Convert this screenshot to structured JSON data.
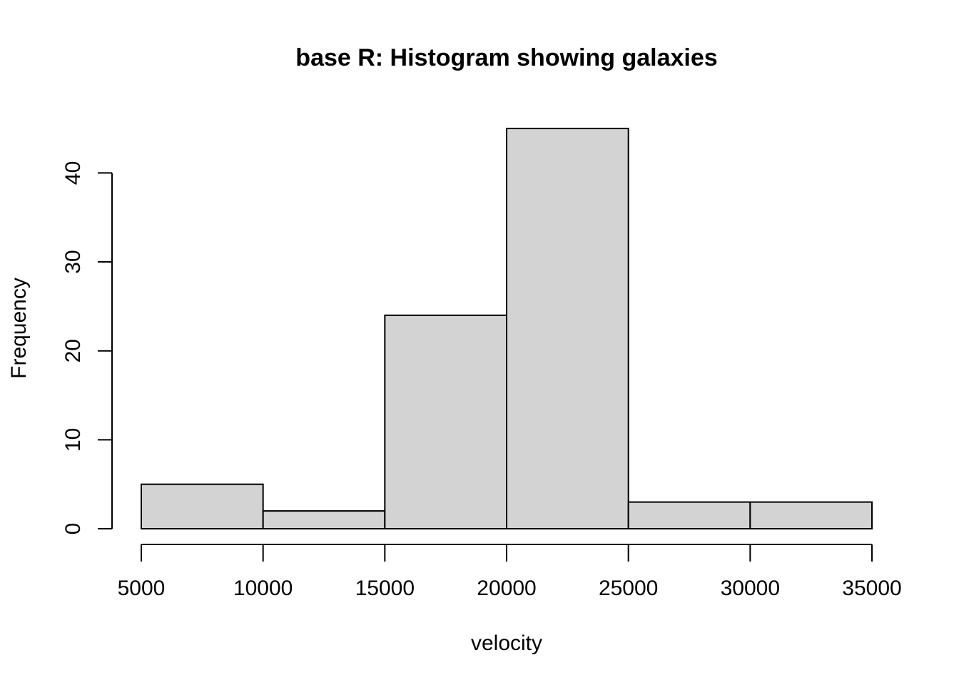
{
  "chart_data": {
    "type": "bar",
    "subtype": "histogram",
    "title": "base R: Histogram showing galaxies",
    "xlabel": "velocity",
    "ylabel": "Frequency",
    "bins": [
      {
        "from": 5000,
        "to": 10000,
        "count": 5
      },
      {
        "from": 10000,
        "to": 15000,
        "count": 2
      },
      {
        "from": 15000,
        "to": 20000,
        "count": 24
      },
      {
        "from": 20000,
        "to": 25000,
        "count": 45
      },
      {
        "from": 25000,
        "to": 30000,
        "count": 3
      },
      {
        "from": 30000,
        "to": 35000,
        "count": 3
      }
    ],
    "x_ticks": [
      "5000",
      "10000",
      "15000",
      "20000",
      "25000",
      "30000",
      "35000"
    ],
    "y_ticks": [
      "0",
      "10",
      "20",
      "30",
      "40"
    ],
    "xlim": [
      5000,
      35000
    ],
    "ylim": [
      0,
      45
    ],
    "grid": false,
    "bar_color": "#d3d3d3",
    "border_color": "#000000"
  }
}
